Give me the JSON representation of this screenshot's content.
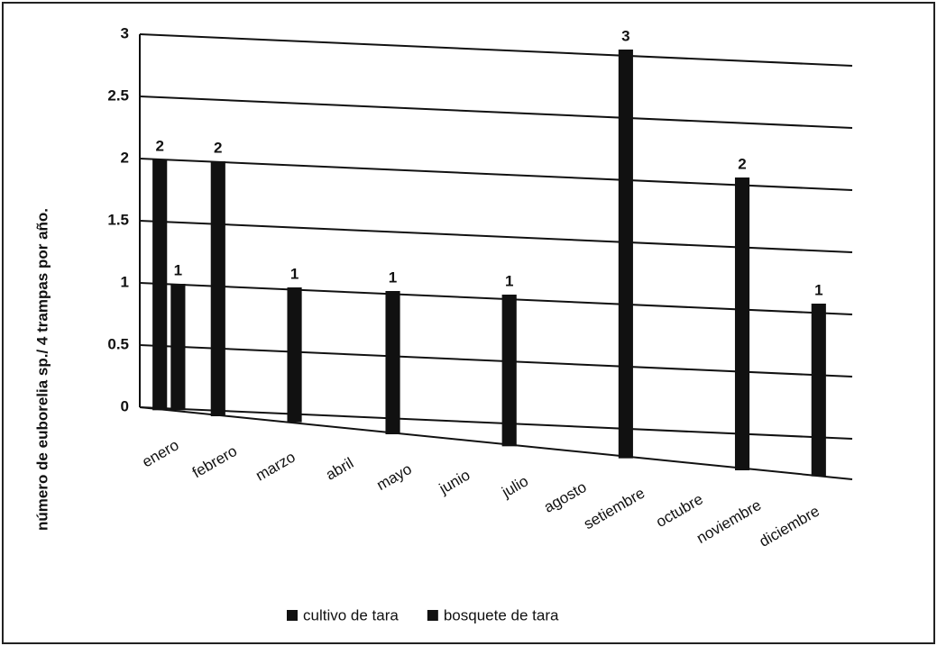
{
  "chart_data": {
    "type": "bar",
    "y_label": "número de euborelia sp./ 4 trampas por año.",
    "categories": [
      "enero",
      "febrero",
      "marzo",
      "abril",
      "mayo",
      "junio",
      "julio",
      "agosto",
      "setiembre",
      "octubre",
      "noviembre",
      "diciembre"
    ],
    "series": [
      {
        "name": "cultivo de tara",
        "color": "#111111",
        "values": [
          2,
          2,
          null,
          null,
          1,
          null,
          1,
          null,
          3,
          null,
          2,
          null
        ]
      },
      {
        "name": "bosquete de tara",
        "color": "#111111",
        "values": [
          1,
          null,
          1,
          null,
          null,
          null,
          null,
          null,
          null,
          null,
          null,
          1
        ]
      }
    ],
    "ylim": [
      0,
      3
    ],
    "yticks": [
      0,
      0.5,
      1,
      1.5,
      2,
      2.5,
      3
    ],
    "grid": true,
    "legend": "bottom"
  }
}
